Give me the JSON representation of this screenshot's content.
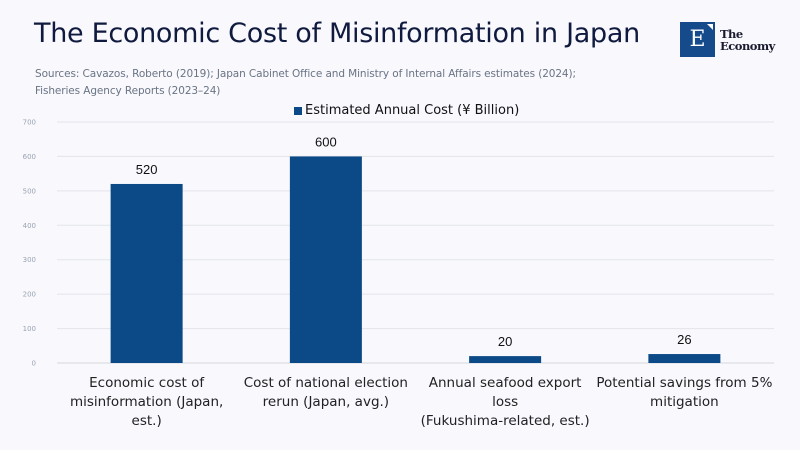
{
  "header": {
    "title": "The Economic Cost of Misinformation in Japan",
    "sources_line1": "Sources: Cavazos, Roberto (2019); Japan Cabinet Office and Ministry of Internal Affairs estimates (2024);",
    "sources_line2": "Fisheries Agency Reports (2023–24)"
  },
  "logo": {
    "letter": "E",
    "line1": "The",
    "line2": "Economy",
    "color": "#154b8a"
  },
  "chart_data": {
    "type": "bar",
    "title": "The Economic Cost of Misinformation in Japan",
    "xlabel": "",
    "ylabel": "",
    "categories": [
      "Economic cost of misinformation (Japan, est.)",
      "Cost of national election rerun (Japan, avg.)",
      "Annual seafood export loss (Fukushima-related, est.)",
      "Potential savings from 5% mitigation"
    ],
    "category_lines": [
      [
        "Economic cost of",
        "misinformation (Japan,",
        "est.)"
      ],
      [
        "Cost of national election",
        "rerun (Japan, avg.)"
      ],
      [
        "Annual seafood export loss",
        "(Fukushima-related, est.)"
      ],
      [
        "Potential savings from 5%",
        "mitigation"
      ]
    ],
    "series": [
      {
        "name": "Estimated Annual Cost (¥ Billion)",
        "values": [
          520,
          600,
          20,
          26
        ],
        "color": "#0b4a86"
      }
    ],
    "data_labels": [
      "520",
      "600",
      "20",
      "26"
    ],
    "ylim": [
      0,
      700
    ],
    "yticks": [
      0,
      100,
      200,
      300,
      400,
      500,
      600,
      700
    ],
    "grid": true,
    "legend": {
      "position": "top-center",
      "label": "Estimated Annual Cost (¥ Billion)"
    }
  }
}
